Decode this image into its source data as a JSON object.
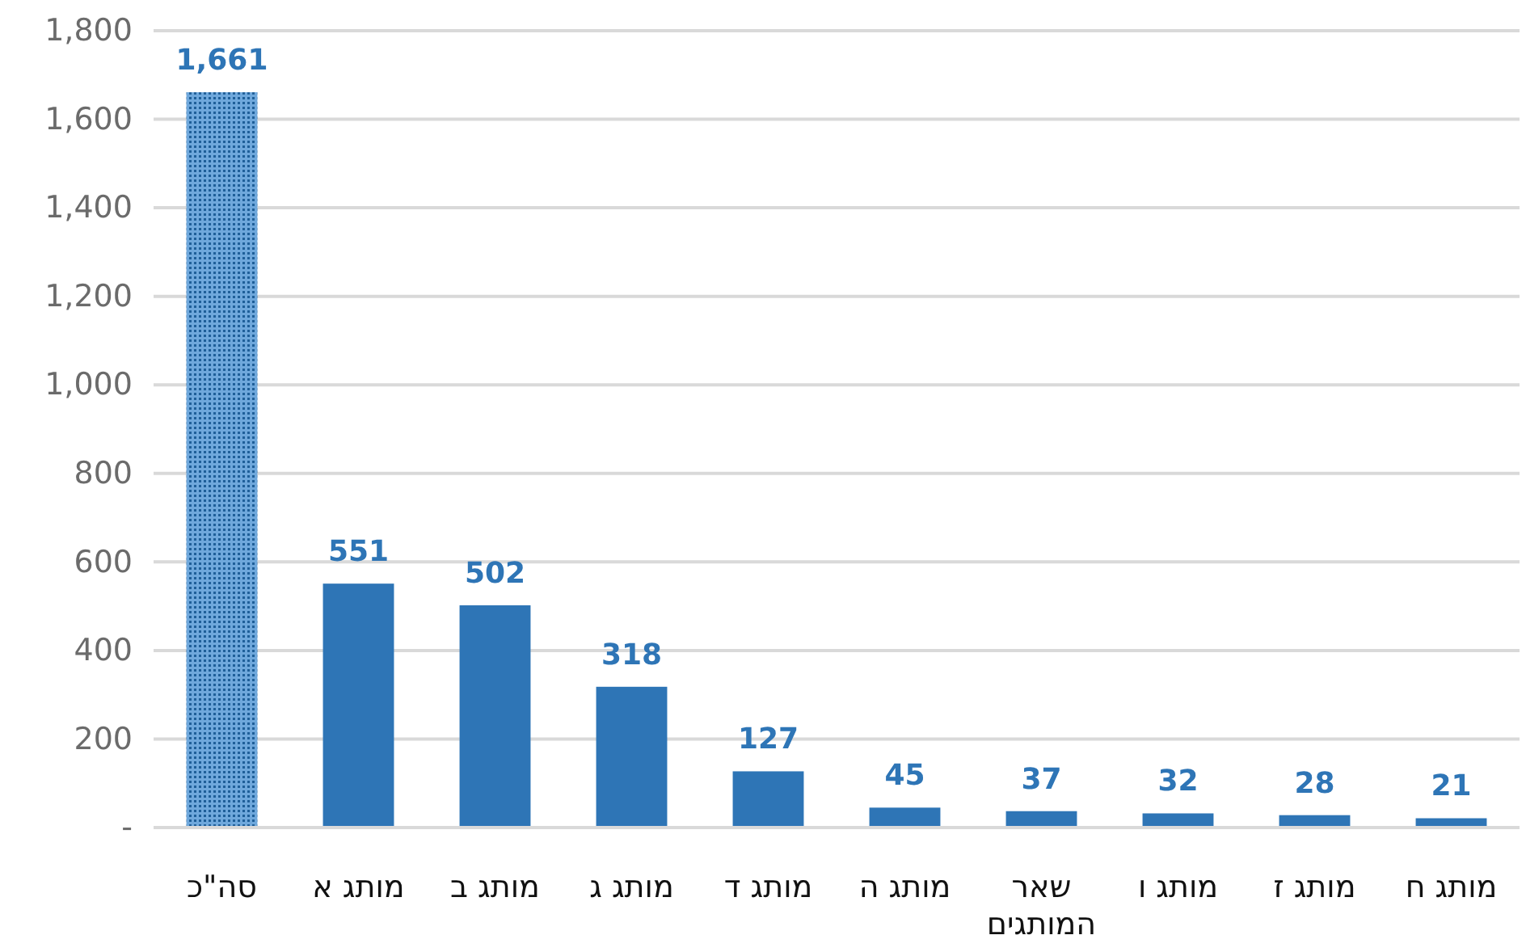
{
  "chart_data": {
    "type": "bar",
    "categories": [
      "סה\"כ",
      "מותג א",
      "מותג ב",
      "מותג ג",
      "מותג ד",
      "מותג ה",
      "שאר המותגים",
      "מותג ו",
      "מותג ז",
      "מותג ח"
    ],
    "values": [
      1661,
      551,
      502,
      318,
      127,
      45,
      37,
      32,
      28,
      21
    ],
    "colors": [
      "#6fa8dc",
      "#2e75b6",
      "#2e75b6",
      "#2e75b6",
      "#2e75b6",
      "#2e75b6",
      "#2e75b6",
      "#2e75b6",
      "#2e75b6",
      "#2e75b6"
    ],
    "ylim": [
      0,
      1800
    ],
    "yticks": [
      {
        "value": 0,
        "label": "-"
      },
      200,
      400,
      600,
      800,
      {
        "value": 1000,
        "label": "1,000"
      },
      {
        "value": 1200,
        "label": "1,200"
      },
      {
        "value": 1400,
        "label": "1,400"
      },
      {
        "value": 1600,
        "label": "1,600"
      },
      {
        "value": 1800,
        "label": "1,800"
      }
    ],
    "grid": "y",
    "value_labels": [
      "1,661",
      "551",
      "502",
      "318",
      "127",
      "45",
      "37",
      "32",
      "28",
      "21"
    ]
  }
}
